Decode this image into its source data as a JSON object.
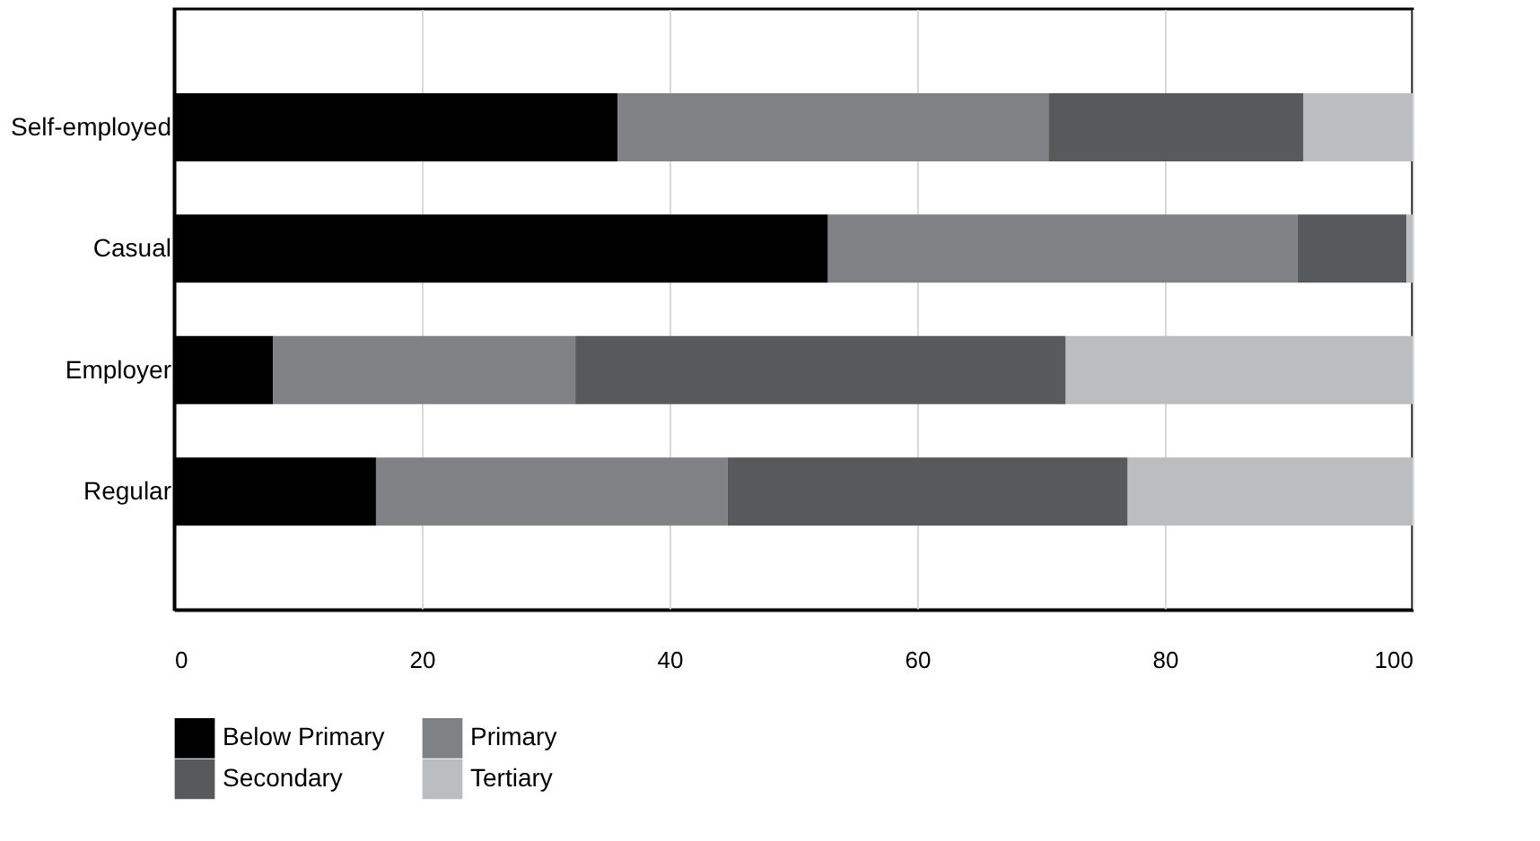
{
  "chart_data": {
    "type": "bar",
    "orientation": "horizontal",
    "stacked": true,
    "categories": [
      "Self-employed",
      "Casual",
      "Employer",
      "Regular"
    ],
    "series": [
      {
        "name": "Below Primary",
        "color": "#000000",
        "values": [
          35.8,
          52.8,
          8.0,
          16.3
        ]
      },
      {
        "name": "Primary",
        "color": "#808184",
        "values": [
          34.8,
          37.9,
          24.4,
          28.4
        ]
      },
      {
        "name": "Secondary",
        "color": "#58595b",
        "values": [
          20.6,
          8.8,
          39.6,
          32.3
        ]
      },
      {
        "name": "Tertiary",
        "color": "#bcbdbf",
        "values": [
          8.8,
          0.5,
          28.0,
          23.0
        ]
      }
    ],
    "xlim": [
      0,
      100
    ],
    "xticks": [
      0,
      20,
      40,
      60,
      80,
      100
    ],
    "grid": "x",
    "legend": "bottom"
  }
}
